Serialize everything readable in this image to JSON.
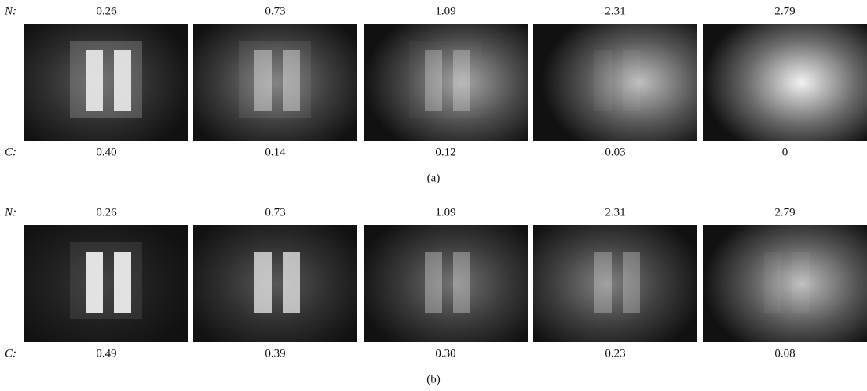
{
  "panels": [
    {
      "n_label": "N:",
      "c_label": "C:",
      "n_values": [
        "0.26",
        "0.73",
        "1.09",
        "2.31",
        "2.79"
      ],
      "c_values": [
        "0.40",
        "0.14",
        "0.12",
        "0.03",
        "0"
      ],
      "caption": "(a)"
    },
    {
      "n_label": "N:",
      "c_label": "C:",
      "n_values": [
        "0.26",
        "0.73",
        "1.09",
        "2.31",
        "2.79"
      ],
      "c_values": [
        "0.49",
        "0.39",
        "0.30",
        "0.23",
        "0.08"
      ],
      "caption": "(b)"
    }
  ]
}
